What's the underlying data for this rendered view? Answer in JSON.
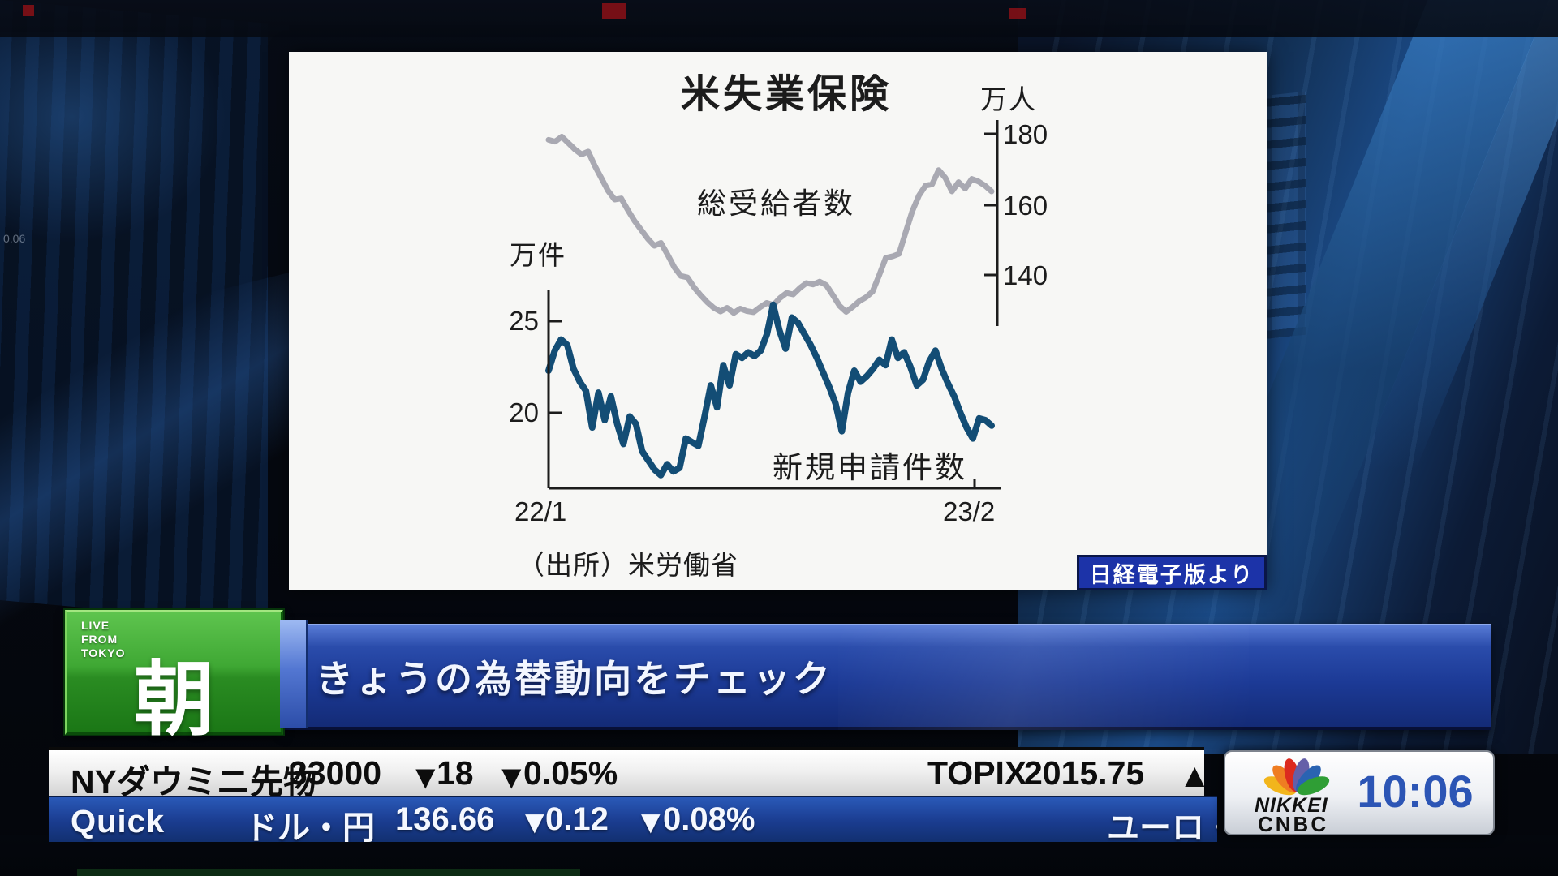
{
  "chart_data": {
    "type": "line",
    "title": "米失業保険",
    "right_axis": {
      "label": "万人",
      "ticks": [
        "180",
        "160",
        "140"
      ]
    },
    "left_axis": {
      "label": "万件",
      "ticks": [
        "25",
        "20"
      ]
    },
    "x_ticks": [
      "22/1",
      "23/2"
    ],
    "source": "（出所）米労働省",
    "credit_badge": "日経電子版より",
    "legend_position": "inline-annotations",
    "grid": false,
    "series": [
      {
        "name": "総受給者数",
        "axis": "right",
        "unit": "万人",
        "color": "#a9a9b2",
        "values": [
          178.3,
          177.8,
          179.2,
          177.4,
          175.6,
          174.2,
          175.0,
          171.0,
          167.5,
          164.0,
          161.5,
          161.8,
          158.5,
          155.5,
          153.0,
          150.5,
          148.5,
          149.3,
          146.0,
          142.5,
          140.0,
          139.6,
          136.8,
          134.6,
          132.6,
          131.0,
          130.0,
          131.0,
          129.6,
          130.8,
          130.1,
          129.8,
          131.2,
          132.4,
          131.8,
          133.8,
          135.2,
          134.8,
          136.6,
          138.0,
          137.6,
          138.4,
          137.4,
          134.6,
          131.6,
          129.9,
          131.3,
          132.9,
          134.0,
          135.6,
          140.2,
          145.1,
          145.5,
          146.2,
          152.3,
          158.2,
          162.6,
          165.4,
          165.8,
          169.8,
          167.6,
          163.8,
          166.4,
          164.6,
          167.3,
          166.6,
          165.4,
          163.8
        ]
      },
      {
        "name": "新規申請件数",
        "axis": "left",
        "unit": "万件",
        "color": "#134d75",
        "values": [
          22.3,
          23.4,
          24.0,
          23.7,
          22.4,
          21.7,
          21.2,
          19.2,
          21.1,
          19.6,
          20.9,
          19.4,
          18.3,
          19.8,
          19.4,
          17.9,
          17.4,
          16.9,
          16.6,
          17.2,
          16.8,
          17.0,
          18.6,
          18.4,
          18.2,
          19.8,
          21.5,
          20.3,
          22.6,
          21.5,
          23.2,
          23.0,
          23.3,
          23.1,
          23.4,
          24.3,
          25.9,
          24.5,
          23.5,
          25.2,
          24.9,
          24.3,
          23.7,
          23.0,
          22.2,
          21.4,
          20.5,
          19.0,
          21.1,
          22.3,
          21.7,
          22.0,
          22.4,
          22.9,
          22.6,
          24.0,
          23.0,
          23.3,
          22.5,
          21.5,
          21.8,
          22.8,
          23.4,
          22.4,
          21.6,
          20.9,
          20.0,
          19.2,
          18.6,
          19.7,
          19.6,
          19.3
        ]
      }
    ]
  },
  "lower_third": {
    "live_line1": "LIVE",
    "live_line2": "FROM",
    "live_line3": "TOKYO",
    "program_kanji": "朝",
    "headline": "きょうの為替動向をチェック"
  },
  "ticker": {
    "row1": {
      "name": "NYダウミニ先物",
      "price": "33000",
      "down_triangle": "▼",
      "change": "18",
      "down_triangle2": "▼",
      "change_pct": "0.05%",
      "name2": "TOPIX",
      "price2": "2015.75",
      "up_triangle": "▲"
    },
    "row2": {
      "logo": "Quick",
      "name": "ドル・円",
      "price": "136.66",
      "down_triangle": "▼",
      "change": "0.12",
      "down_triangle2": "▼",
      "change_pct": "0.08%",
      "next_name": "ユーロ・"
    }
  },
  "clock": {
    "brand_top": "NIKKEI",
    "brand_bottom": "CNBC",
    "time": "10:06"
  },
  "background": {
    "artifact_number": "0.06"
  },
  "colors": {
    "claims_line": "#134d75",
    "recipients_line": "#a9a9b2",
    "badge_blue": "#1c33a8",
    "banner_blue": "#1c3a96",
    "live_green": "#3fa834",
    "ticker_down_cyan": "#3cb4e8",
    "ticker_up_red": "#e61c28",
    "clock_time_blue": "#2c55b5"
  }
}
